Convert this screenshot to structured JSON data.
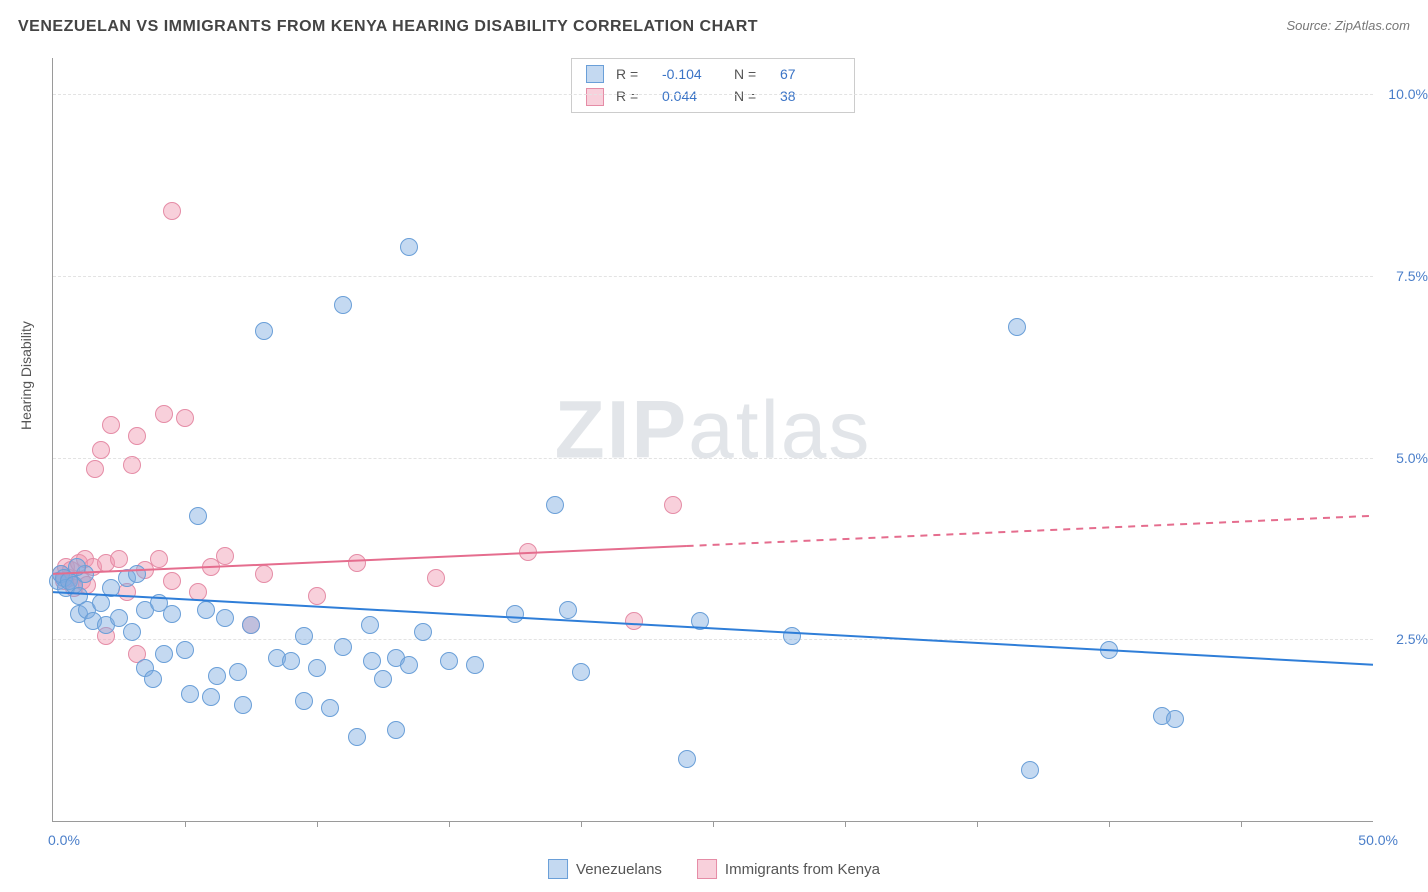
{
  "header": {
    "title": "VENEZUELAN VS IMMIGRANTS FROM KENYA HEARING DISABILITY CORRELATION CHART",
    "source_prefix": "Source: ",
    "source": "ZipAtlas.com"
  },
  "watermark": {
    "bold": "ZIP",
    "rest": "atlas"
  },
  "axes": {
    "ylabel": "Hearing Disability",
    "x_min": 0.0,
    "x_max": 50.0,
    "y_min": 0.0,
    "y_max": 10.5,
    "x_start_label": "0.0%",
    "x_end_label": "50.0%",
    "grid_y": [
      2.5,
      5.0,
      7.5,
      10.0
    ],
    "grid_labels": [
      "2.5%",
      "5.0%",
      "7.5%",
      "10.0%"
    ],
    "x_tick_positions": [
      5,
      10,
      15,
      20,
      25,
      30,
      35,
      40,
      45
    ],
    "grid_color": "#e3e3e3",
    "axis_color": "#9a9a9a",
    "tick_label_color": "#4a7ec9",
    "tick_label_fontsize": 14
  },
  "series": {
    "venezuelans": {
      "label": "Venezuelans",
      "fill": "rgba(125,170,225,0.45)",
      "stroke": "#6a9fd8",
      "marker_radius": 8,
      "R": "-0.104",
      "N": "67",
      "trend": {
        "y_at_x0": 3.15,
        "y_at_x50": 2.15,
        "solid_until_x": 50,
        "color": "#2f7ed8",
        "width": 2
      },
      "points": [
        [
          0.2,
          3.3
        ],
        [
          0.3,
          3.4
        ],
        [
          0.4,
          3.35
        ],
        [
          0.5,
          3.2
        ],
        [
          0.6,
          3.3
        ],
        [
          0.8,
          3.25
        ],
        [
          1.0,
          3.1
        ],
        [
          1.2,
          3.4
        ],
        [
          1.0,
          2.85
        ],
        [
          1.3,
          2.9
        ],
        [
          1.5,
          2.75
        ],
        [
          1.8,
          3.0
        ],
        [
          2.0,
          2.7
        ],
        [
          2.2,
          3.2
        ],
        [
          2.5,
          2.8
        ],
        [
          2.8,
          3.35
        ],
        [
          3.0,
          2.6
        ],
        [
          3.2,
          3.4
        ],
        [
          3.5,
          2.9
        ],
        [
          3.5,
          2.1
        ],
        [
          3.8,
          1.95
        ],
        [
          4.0,
          3.0
        ],
        [
          4.2,
          2.3
        ],
        [
          4.5,
          2.85
        ],
        [
          5.0,
          2.35
        ],
        [
          5.2,
          1.75
        ],
        [
          5.5,
          4.2
        ],
        [
          5.8,
          2.9
        ],
        [
          6.0,
          1.7
        ],
        [
          6.2,
          2.0
        ],
        [
          6.5,
          2.8
        ],
        [
          7.0,
          2.05
        ],
        [
          7.2,
          1.6
        ],
        [
          7.5,
          2.7
        ],
        [
          8.0,
          6.75
        ],
        [
          8.5,
          2.25
        ],
        [
          9.0,
          2.2
        ],
        [
          9.5,
          1.65
        ],
        [
          9.5,
          2.55
        ],
        [
          10.0,
          2.1
        ],
        [
          10.5,
          1.55
        ],
        [
          11.0,
          2.4
        ],
        [
          11.0,
          7.1
        ],
        [
          11.5,
          1.15
        ],
        [
          12.0,
          2.7
        ],
        [
          12.1,
          2.2
        ],
        [
          12.5,
          1.95
        ],
        [
          13.0,
          2.25
        ],
        [
          13.0,
          1.25
        ],
        [
          13.5,
          2.15
        ],
        [
          13.5,
          7.9
        ],
        [
          14.0,
          2.6
        ],
        [
          15.0,
          2.2
        ],
        [
          16.0,
          2.15
        ],
        [
          17.5,
          2.85
        ],
        [
          19.0,
          4.35
        ],
        [
          19.5,
          2.9
        ],
        [
          20.0,
          2.05
        ],
        [
          24.0,
          0.85
        ],
        [
          24.5,
          2.75
        ],
        [
          36.5,
          6.8
        ],
        [
          37.0,
          0.7
        ],
        [
          42.0,
          1.45
        ],
        [
          42.5,
          1.4
        ],
        [
          40.0,
          2.35
        ],
        [
          28.0,
          2.55
        ],
        [
          0.9,
          3.5
        ]
      ]
    },
    "kenya": {
      "label": "Immigrants from Kenya",
      "fill": "rgba(240,150,175,0.45)",
      "stroke": "#e58ca6",
      "marker_radius": 8,
      "R": "0.044",
      "N": "38",
      "trend": {
        "y_at_x0": 3.4,
        "y_at_x50": 4.2,
        "solid_until_x": 24,
        "color": "#e56d8e",
        "width": 2,
        "dash": "7,6"
      },
      "points": [
        [
          0.3,
          3.4
        ],
        [
          0.4,
          3.3
        ],
        [
          0.5,
          3.5
        ],
        [
          0.6,
          3.35
        ],
        [
          0.7,
          3.45
        ],
        [
          0.8,
          3.2
        ],
        [
          1.0,
          3.55
        ],
        [
          1.1,
          3.3
        ],
        [
          1.2,
          3.6
        ],
        [
          1.3,
          3.25
        ],
        [
          1.5,
          3.5
        ],
        [
          1.6,
          4.85
        ],
        [
          1.8,
          5.1
        ],
        [
          2.0,
          3.55
        ],
        [
          2.0,
          2.55
        ],
        [
          2.2,
          5.45
        ],
        [
          2.5,
          3.6
        ],
        [
          2.8,
          3.15
        ],
        [
          3.0,
          4.9
        ],
        [
          3.2,
          5.3
        ],
        [
          3.2,
          2.3
        ],
        [
          3.5,
          3.45
        ],
        [
          4.0,
          3.6
        ],
        [
          4.2,
          5.6
        ],
        [
          4.5,
          8.4
        ],
        [
          4.5,
          3.3
        ],
        [
          5.0,
          5.55
        ],
        [
          5.5,
          3.15
        ],
        [
          6.0,
          3.5
        ],
        [
          6.5,
          3.65
        ],
        [
          7.5,
          2.7
        ],
        [
          8.0,
          3.4
        ],
        [
          10.0,
          3.1
        ],
        [
          11.5,
          3.55
        ],
        [
          14.5,
          3.35
        ],
        [
          18.0,
          3.7
        ],
        [
          23.5,
          4.35
        ],
        [
          22.0,
          2.75
        ]
      ]
    }
  },
  "legend_top_labels": {
    "R": "R =",
    "N": "N ="
  }
}
